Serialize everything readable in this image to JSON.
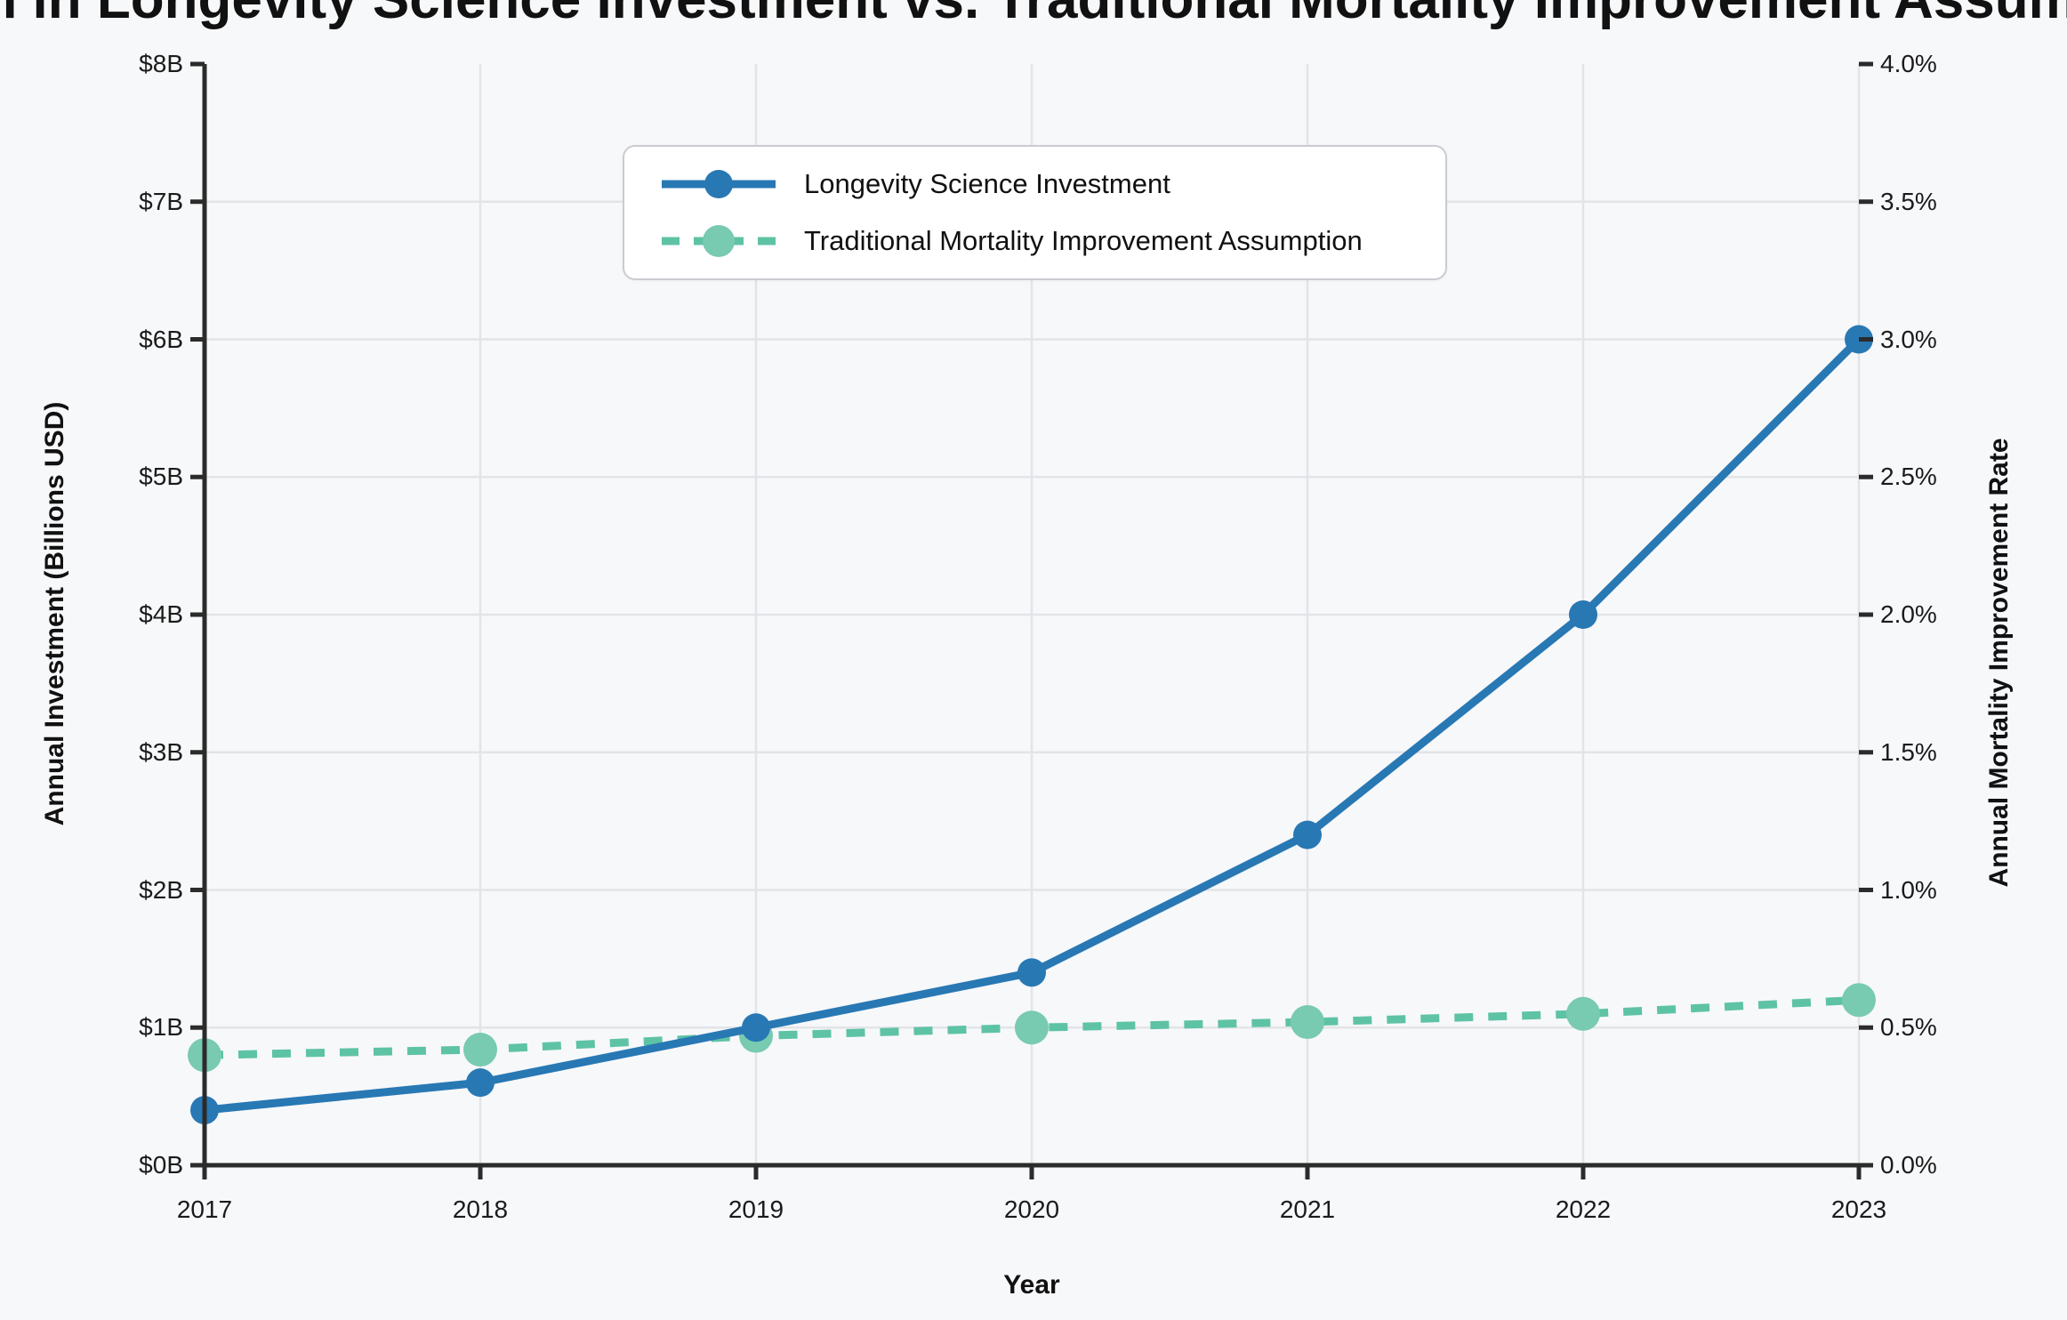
{
  "title": "Growth in Longevity Science Investment vs. Traditional Mortality Improvement Assumptions",
  "axes": {
    "x_title": "Year",
    "y_left_title": "Annual Investment (Billions USD)",
    "y_right_title": "Annual Mortality Improvement Rate",
    "x_tick_labels": [
      "2017",
      "2018",
      "2019",
      "2020",
      "2021",
      "2022",
      "2023"
    ],
    "y_left_tick_labels": [
      "$0B",
      "$1B",
      "$2B",
      "$3B",
      "$4B",
      "$5B",
      "$6B",
      "$7B",
      "$8B"
    ],
    "y_right_tick_labels": [
      "0.0%",
      "0.5%",
      "1.0%",
      "1.5%",
      "2.0%",
      "2.5%",
      "3.0%",
      "3.5%",
      "4.0%"
    ]
  },
  "legend": {
    "items": [
      {
        "label": "Longevity Science Investment",
        "style": "solid"
      },
      {
        "label": "Traditional Mortality Improvement Assumption",
        "style": "dashed"
      }
    ]
  },
  "colors": {
    "background": "#f7f8fa",
    "grid": "#e3e4e8",
    "spine": "#2b2b2b",
    "investment_line": "#2878b4",
    "investment_marker": "#2878b4",
    "mortality_line": "#5ec3a5",
    "mortality_marker": "#78cab1",
    "text": "#1b1b1b"
  },
  "chart_data": {
    "type": "line",
    "x": [
      2017,
      2018,
      2019,
      2020,
      2021,
      2022,
      2023
    ],
    "series": [
      {
        "name": "Longevity Science Investment",
        "axis": "left",
        "units": "billions USD",
        "values": [
          0.4,
          0.6,
          1.0,
          1.4,
          2.4,
          4.0,
          6.0
        ],
        "line_style": "solid",
        "color": "#2878b4"
      },
      {
        "name": "Traditional Mortality Improvement Assumption",
        "axis": "right",
        "units": "percent",
        "values": [
          0.4,
          0.42,
          0.47,
          0.5,
          0.52,
          0.55,
          0.6
        ],
        "line_style": "dashed",
        "color": "#5ec3a5"
      }
    ],
    "title": "Growth in Longevity Science Investment vs. Traditional Mortality Improvement Assumptions",
    "xlabel": "Year",
    "ylabel_left": "Annual Investment (Billions USD)",
    "ylabel_right": "Annual Mortality Improvement Rate",
    "ylim_left": [
      0,
      8
    ],
    "ylim_right": [
      0.0,
      4.0
    ],
    "grid": true,
    "legend_position": "upper left inside"
  }
}
